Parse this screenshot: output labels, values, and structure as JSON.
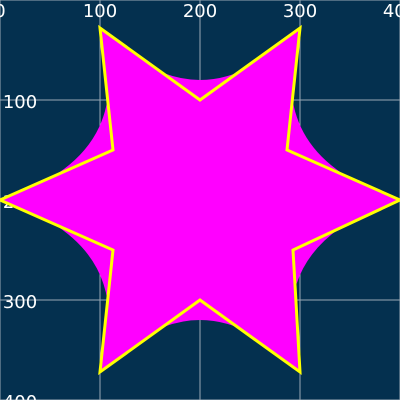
{
  "axes": {
    "xticks": [
      0,
      100,
      200,
      300,
      400
    ],
    "yticks": [
      0,
      100,
      200,
      300,
      400
    ]
  }
}
